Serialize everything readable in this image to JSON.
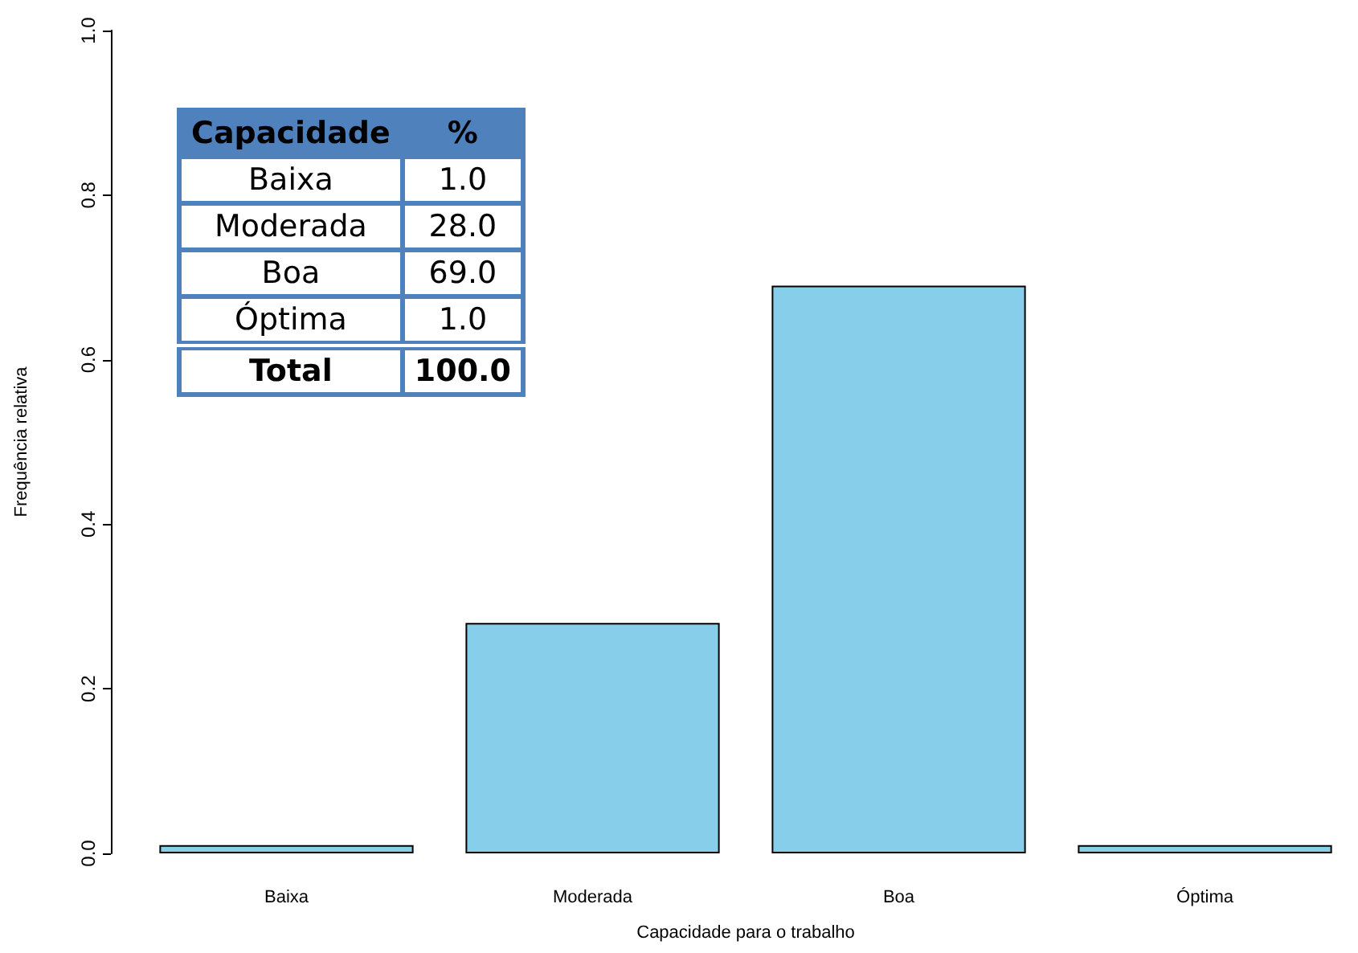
{
  "chart_data": {
    "type": "bar",
    "xlabel": "Capacidade para o trabalho",
    "ylabel": "Frequência relativa",
    "categories": [
      "Baixa",
      "Moderada",
      "Boa",
      "Óptima"
    ],
    "values": [
      0.01,
      0.28,
      0.69,
      0.01
    ],
    "color": "#87ceeb",
    "ylim": [
      0,
      1
    ],
    "yticks": [
      {
        "value": 0,
        "label": "0.0"
      },
      0.2,
      0.4,
      0.6,
      0.8,
      {
        "value": 1,
        "label": "1.0"
      }
    ],
    "grid": false,
    "annotations": [
      "Capacidade",
      "%",
      "Baixa",
      "1.0",
      "Moderada",
      "28.0",
      "Boa",
      "69.0",
      "Óptima",
      "1.0",
      "Total",
      "100.0"
    ]
  }
}
